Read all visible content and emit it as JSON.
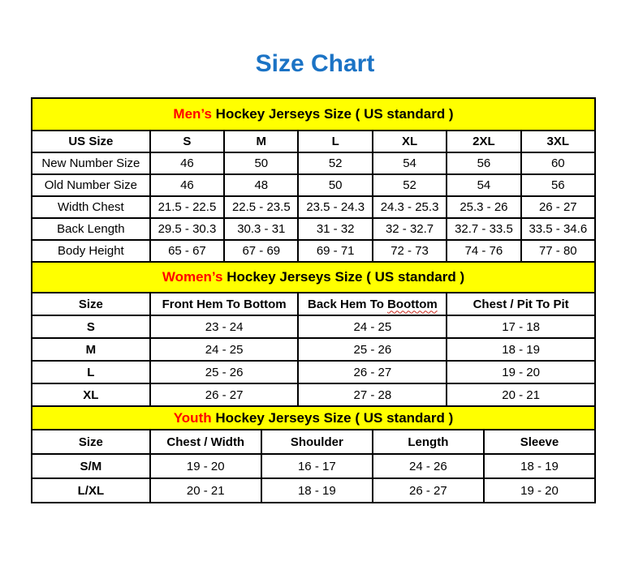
{
  "page_title": "Size Chart",
  "colors": {
    "title_blue": "#1B73C5",
    "banner_yellow": "#FFFF00",
    "highlight_red": "#FF0000",
    "border_black": "#000000"
  },
  "tables": [
    {
      "name": "mens",
      "banner": {
        "highlight": "Men’s",
        "rest": " Hockey Jerseys Size ( US standard )"
      },
      "columns": [
        "US Size",
        "S",
        "M",
        "L",
        "XL",
        "2XL",
        "3XL"
      ],
      "rows": [
        {
          "label": "New Number Size",
          "values": [
            "46",
            "50",
            "52",
            "54",
            "56",
            "60"
          ]
        },
        {
          "label": "Old Number Size",
          "values": [
            "46",
            "48",
            "50",
            "52",
            "54",
            "56"
          ]
        },
        {
          "label": "Width Chest",
          "values": [
            "21.5 - 22.5",
            "22.5 - 23.5",
            "23.5 - 24.3",
            "24.3 - 25.3",
            "25.3 - 26",
            "26 - 27"
          ]
        },
        {
          "label": "Back Length",
          "values": [
            "29.5 - 30.3",
            "30.3 - 31",
            "31 - 32",
            "32 - 32.7",
            "32.7 - 33.5",
            "33.5 - 34.6"
          ]
        },
        {
          "label": "Body Height",
          "values": [
            "65 - 67",
            "67 - 69",
            "69 - 71",
            "72 - 73",
            "74 - 76",
            "77 - 80"
          ]
        }
      ]
    },
    {
      "name": "womens",
      "banner": {
        "highlight": "Women’s",
        "rest": " Hockey Jerseys Size ( US standard )"
      },
      "columns": [
        "Size",
        "Front Hem To Bottom",
        "Back Hem To Boottom",
        "Chest / Pit To Pit"
      ],
      "spellcheck_underline": {
        "column_index": 2,
        "word": "Boottom"
      },
      "rows": [
        {
          "label": "S",
          "values": [
            "23 - 24",
            "24 - 25",
            "17 - 18"
          ]
        },
        {
          "label": "M",
          "values": [
            "24 - 25",
            "25 - 26",
            "18 - 19"
          ]
        },
        {
          "label": "L",
          "values": [
            "25 - 26",
            "26 - 27",
            "19 - 20"
          ]
        },
        {
          "label": "XL",
          "values": [
            "26 - 27",
            "27 - 28",
            "20 - 21"
          ]
        }
      ]
    },
    {
      "name": "youth",
      "banner": {
        "highlight": "Youth",
        "rest": " Hockey Jerseys Size ( US standard )"
      },
      "columns": [
        "Size",
        "Chest / Width",
        "Shoulder",
        "Length",
        "Sleeve"
      ],
      "rows": [
        {
          "label": "S/M",
          "values": [
            "19 - 20",
            "16 - 17",
            "24 - 26",
            "18 - 19"
          ]
        },
        {
          "label": "L/XL",
          "values": [
            "20 - 21",
            "18 - 19",
            "26 - 27",
            "19 - 20"
          ]
        }
      ]
    }
  ]
}
